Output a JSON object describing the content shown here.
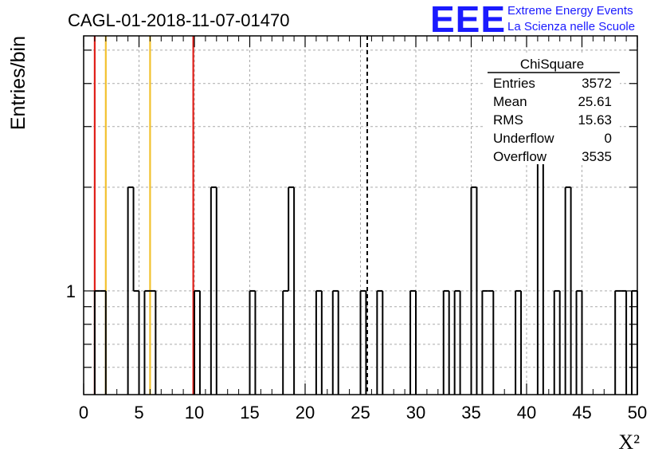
{
  "chart_data": {
    "type": "histogram",
    "title": "CAGL-01-2018-11-07-01470",
    "ylabel": "Entries/bin",
    "xlabel": "X²",
    "x_range": [
      0,
      50
    ],
    "y_scale": "log",
    "y_range": [
      0.5,
      5.5
    ],
    "y_tick_labels": [
      {
        "value": 1,
        "label": "1"
      }
    ],
    "x_tick_labels": [
      "0",
      "5",
      "10",
      "15",
      "20",
      "25",
      "30",
      "35",
      "40",
      "45",
      "50"
    ],
    "x_ticks": [
      0,
      5,
      10,
      15,
      20,
      25,
      30,
      35,
      40,
      45,
      50
    ],
    "grid": true,
    "bin_width": 0.5,
    "bins": [
      {
        "x": 1.0,
        "y": 1
      },
      {
        "x": 1.5,
        "y": 1
      },
      {
        "x": 4.0,
        "y": 2
      },
      {
        "x": 4.5,
        "y": 1
      },
      {
        "x": 5.5,
        "y": 1
      },
      {
        "x": 6.0,
        "y": 1
      },
      {
        "x": 10.0,
        "y": 1
      },
      {
        "x": 11.5,
        "y": 2
      },
      {
        "x": 15.0,
        "y": 1
      },
      {
        "x": 18.0,
        "y": 1
      },
      {
        "x": 18.5,
        "y": 2
      },
      {
        "x": 21.0,
        "y": 1
      },
      {
        "x": 22.5,
        "y": 1
      },
      {
        "x": 25.0,
        "y": 1
      },
      {
        "x": 26.5,
        "y": 1
      },
      {
        "x": 29.5,
        "y": 1
      },
      {
        "x": 32.5,
        "y": 1
      },
      {
        "x": 33.5,
        "y": 1
      },
      {
        "x": 35.0,
        "y": 2
      },
      {
        "x": 36.0,
        "y": 1
      },
      {
        "x": 36.5,
        "y": 1
      },
      {
        "x": 39.0,
        "y": 1
      },
      {
        "x": 41.0,
        "y": 4
      },
      {
        "x": 42.5,
        "y": 1
      },
      {
        "x": 43.5,
        "y": 2
      },
      {
        "x": 44.5,
        "y": 1
      },
      {
        "x": 48.0,
        "y": 1
      },
      {
        "x": 48.5,
        "y": 1
      },
      {
        "x": 49.5,
        "y": 1
      }
    ],
    "reference_lines": [
      {
        "x": 1.0,
        "color": "#e0201a"
      },
      {
        "x": 2.0,
        "color": "#f2c12e"
      },
      {
        "x": 6.0,
        "color": "#f2c12e"
      },
      {
        "x": 9.9,
        "color": "#e0201a"
      }
    ],
    "mean_line": {
      "x": 25.61,
      "style": "dashed",
      "color": "#000000"
    },
    "stats_box": {
      "title": "ChiSquare",
      "rows": [
        {
          "label": "Entries",
          "value": "3572"
        },
        {
          "label": "Mean",
          "value": "25.61"
        },
        {
          "label": "RMS",
          "value": "15.63"
        },
        {
          "label": "Underflow",
          "value": "0"
        },
        {
          "label": "Overflow",
          "value": "3535"
        }
      ]
    },
    "logo": {
      "text": "EEE",
      "line1": "Extreme Energy Events",
      "line2": "La Scienza nelle Scuole",
      "color": "#1a1aff"
    }
  }
}
